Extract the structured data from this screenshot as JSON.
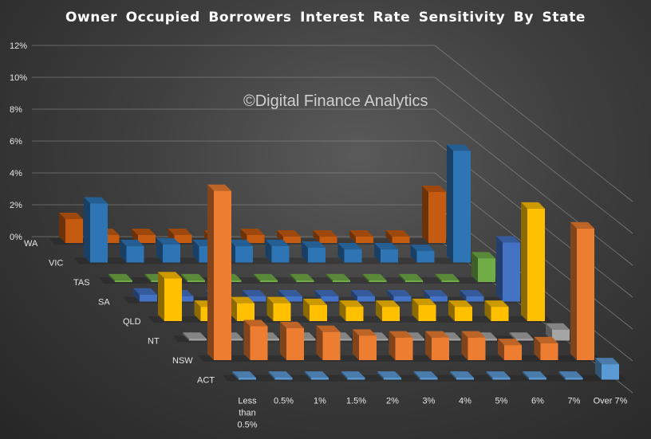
{
  "chart_data": {
    "type": "bar",
    "subtype": "3d-column",
    "title": "Owner Occupied Borrowers  Interest Rate Sensitivity  By State",
    "watermark": "©Digital Finance Analytics",
    "categories": [
      "Less than 0.5%",
      "0.5%",
      "1%",
      "1.5%",
      "2%",
      "3%",
      "4%",
      "5%",
      "6%",
      "7%",
      "Over 7%"
    ],
    "ylim": [
      0,
      12
    ],
    "yticks": [
      "0%",
      "2%",
      "4%",
      "6%",
      "8%",
      "10%",
      "12%"
    ],
    "grid": true,
    "series": [
      {
        "name": "WA",
        "color": "#c55a11",
        "values": [
          1.5,
          0.5,
          0.5,
          0.5,
          0.4,
          0.5,
          0.4,
          0.4,
          0.4,
          0.4,
          3.2
        ]
      },
      {
        "name": "VIC",
        "color": "#2e75b6",
        "values": [
          3.6,
          1.0,
          1.1,
          1.0,
          1.0,
          1.0,
          0.9,
          0.8,
          0.8,
          0.7,
          6.8
        ]
      },
      {
        "name": "TAS",
        "color": "#70ad47",
        "values": [
          0.1,
          0.1,
          0.1,
          0.1,
          0.1,
          0.1,
          0.1,
          0.1,
          0.1,
          0.1,
          1.4
        ]
      },
      {
        "name": "SA",
        "color": "#4472c4",
        "values": [
          0.4,
          0.3,
          0.3,
          0.3,
          0.3,
          0.3,
          0.3,
          0.3,
          0.3,
          0.3,
          3.4
        ]
      },
      {
        "name": "QLD",
        "color": "#ffc000",
        "values": [
          2.4,
          0.8,
          1.0,
          1.0,
          0.9,
          0.8,
          0.8,
          0.9,
          0.8,
          0.8,
          6.3
        ]
      },
      {
        "name": "NT",
        "color": "#a5a5a5",
        "values": [
          0.1,
          0.1,
          0.1,
          0.1,
          0.1,
          0.1,
          0.1,
          0.1,
          0.1,
          0.1,
          0.6
        ]
      },
      {
        "name": "NSW",
        "color": "#ed7d31",
        "values": [
          9.0,
          1.8,
          1.7,
          1.5,
          1.3,
          1.2,
          1.2,
          1.2,
          0.8,
          0.9,
          7.0
        ]
      },
      {
        "name": "ACT",
        "color": "#5b9bd5",
        "values": [
          0.1,
          0.1,
          0.1,
          0.1,
          0.1,
          0.1,
          0.1,
          0.1,
          0.1,
          0.1,
          0.8
        ]
      }
    ]
  }
}
